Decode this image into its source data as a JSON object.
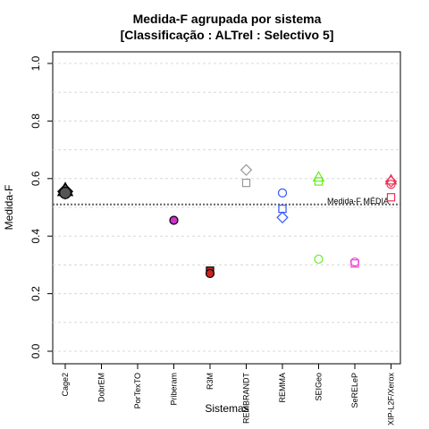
{
  "chart_data": {
    "type": "scatter",
    "title": "Medida-F agrupada por sistema",
    "subtitle": "[Classificação : ALTrel : Selectivo 5]",
    "xlabel": "Sistemas",
    "ylabel": "Medida-F",
    "ylim": [
      0,
      1
    ],
    "yticks": [
      "0.0",
      "0.2",
      "0.4",
      "0.6",
      "0.8",
      "1.0"
    ],
    "grid": true,
    "categories": [
      "Cage2",
      "DobrEM",
      "PorTexTO",
      "Priberam",
      "R3M",
      "REMBRANDT",
      "REMMA",
      "SEIGeo",
      "SeRELeP",
      "XIP-L2F/Xerox"
    ],
    "reference_line": {
      "label": "Medida-F MÉDIA",
      "value": 0.51
    },
    "points": [
      {
        "category": "Cage2",
        "y": 0.56,
        "shape": "triangle",
        "color": "#555555",
        "filled": true,
        "size": 1.4
      },
      {
        "category": "Cage2",
        "y": 0.555,
        "shape": "diamond",
        "color": "#555555",
        "filled": true,
        "size": 1.4
      },
      {
        "category": "Cage2",
        "y": 0.55,
        "shape": "circle",
        "color": "#555555",
        "filled": true,
        "size": 1.4
      },
      {
        "category": "Priberam",
        "y": 0.455,
        "shape": "circle",
        "color": "#CC33CC",
        "filled": true,
        "size": 1
      },
      {
        "category": "R3M",
        "y": 0.28,
        "shape": "square",
        "color": "#CC2222",
        "filled": true,
        "size": 1
      },
      {
        "category": "R3M",
        "y": 0.27,
        "shape": "circle",
        "color": "#CC2222",
        "filled": true,
        "size": 1
      },
      {
        "category": "REMBRANDT",
        "y": 0.63,
        "shape": "diamond",
        "color": "#999999",
        "filled": false,
        "size": 1
      },
      {
        "category": "REMBRANDT",
        "y": 0.585,
        "shape": "square",
        "color": "#999999",
        "filled": false,
        "size": 1
      },
      {
        "category": "REMMA",
        "y": 0.55,
        "shape": "circle",
        "color": "#3355FF",
        "filled": false,
        "size": 1
      },
      {
        "category": "REMMA",
        "y": 0.495,
        "shape": "square",
        "color": "#3355FF",
        "filled": false,
        "size": 1
      },
      {
        "category": "REMMA",
        "y": 0.465,
        "shape": "diamond",
        "color": "#3355FF",
        "filled": false,
        "size": 1
      },
      {
        "category": "SEIGeo",
        "y": 0.605,
        "shape": "triangle",
        "color": "#66EE22",
        "filled": false,
        "size": 1
      },
      {
        "category": "SEIGeo",
        "y": 0.59,
        "shape": "square",
        "color": "#66EE22",
        "filled": false,
        "size": 1
      },
      {
        "category": "SEIGeo",
        "y": 0.32,
        "shape": "circle",
        "color": "#66EE22",
        "filled": false,
        "size": 1
      },
      {
        "category": "SeRELeP",
        "y": 0.31,
        "shape": "circle",
        "color": "#EE44CC",
        "filled": false,
        "size": 1
      },
      {
        "category": "SeRELeP",
        "y": 0.305,
        "shape": "square",
        "color": "#EE44CC",
        "filled": false,
        "size": 1
      },
      {
        "category": "XIP-L2F/Xerox",
        "y": 0.595,
        "shape": "triangle",
        "color": "#EE3355",
        "filled": false,
        "size": 1
      },
      {
        "category": "XIP-L2F/Xerox",
        "y": 0.59,
        "shape": "diamond",
        "color": "#EE3355",
        "filled": false,
        "size": 1
      },
      {
        "category": "XIP-L2F/Xerox",
        "y": 0.58,
        "shape": "circle",
        "color": "#EE3355",
        "filled": false,
        "size": 1
      },
      {
        "category": "XIP-L2F/Xerox",
        "y": 0.535,
        "shape": "square",
        "color": "#EE3355",
        "filled": false,
        "size": 1
      }
    ]
  }
}
